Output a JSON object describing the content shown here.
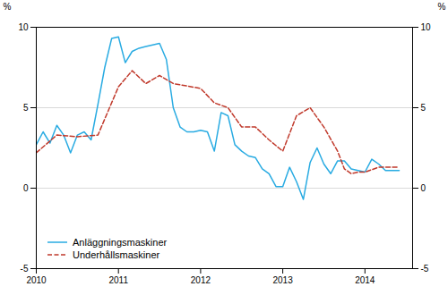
{
  "chart_data": {
    "type": "line",
    "ylabel": "%",
    "y2label": "%",
    "xlim": [
      2010.0,
      2014.58
    ],
    "xticks": [
      2010,
      2011,
      2012,
      2013,
      2014
    ],
    "ylim": [
      -5,
      10
    ],
    "yticks": [
      -5,
      0,
      5,
      10
    ],
    "y2lim": [
      -5,
      10
    ],
    "y2ticks": [
      -5,
      0,
      5,
      10
    ],
    "grid": true,
    "legend": "lower left",
    "series": [
      {
        "name": "Anläggningsmaskiner",
        "color": "#29abe2",
        "line_style": "solid",
        "x": [
          2010.0,
          2010.083,
          2010.167,
          2010.25,
          2010.333,
          2010.417,
          2010.5,
          2010.583,
          2010.667,
          2010.75,
          2010.833,
          2010.917,
          2011.0,
          2011.083,
          2011.167,
          2011.25,
          2011.333,
          2011.417,
          2011.5,
          2011.583,
          2011.667,
          2011.75,
          2011.833,
          2011.917,
          2012.0,
          2012.083,
          2012.167,
          2012.25,
          2012.333,
          2012.417,
          2012.5,
          2012.583,
          2012.667,
          2012.75,
          2012.833,
          2012.917,
          2013.0,
          2013.083,
          2013.167,
          2013.25,
          2013.333,
          2013.417,
          2013.5,
          2013.583,
          2013.667,
          2013.75,
          2013.833,
          2013.917,
          2014.0,
          2014.083,
          2014.167,
          2014.25,
          2014.333,
          2014.417
        ],
        "values": [
          2.7,
          3.5,
          2.8,
          3.9,
          3.3,
          2.2,
          3.3,
          3.5,
          3.0,
          5.2,
          7.5,
          9.3,
          9.4,
          7.8,
          8.5,
          8.7,
          8.8,
          8.9,
          9.0,
          8.0,
          5.0,
          3.8,
          3.5,
          3.5,
          3.6,
          3.5,
          2.3,
          4.7,
          4.5,
          2.7,
          2.3,
          2.0,
          1.9,
          1.2,
          0.9,
          0.1,
          0.1,
          1.3,
          0.4,
          -0.7,
          1.6,
          2.5,
          1.5,
          0.9,
          1.7,
          1.7,
          1.2,
          1.1,
          1.0,
          1.8,
          1.5,
          1.1,
          1.1,
          1.1
        ]
      },
      {
        "name": "Underhållsmaskiner",
        "color": "#c0392b",
        "line_style": "dashed",
        "x": [
          2010.0,
          2010.25,
          2010.5,
          2010.75,
          2011.0,
          2011.167,
          2011.333,
          2011.5,
          2011.667,
          2012.0,
          2012.167,
          2012.333,
          2012.5,
          2012.667,
          2012.833,
          2013.0,
          2013.167,
          2013.333,
          2013.5,
          2013.667,
          2013.75,
          2013.833,
          2013.917,
          2014.0,
          2014.167,
          2014.333,
          2014.417
        ],
        "values": [
          2.2,
          3.3,
          3.2,
          3.3,
          6.3,
          7.3,
          6.5,
          7.0,
          6.5,
          6.2,
          5.3,
          5.0,
          3.8,
          3.8,
          3.0,
          2.3,
          4.5,
          5.0,
          3.8,
          2.3,
          1.2,
          0.9,
          1.0,
          1.0,
          1.3,
          1.3,
          1.3
        ]
      }
    ]
  }
}
